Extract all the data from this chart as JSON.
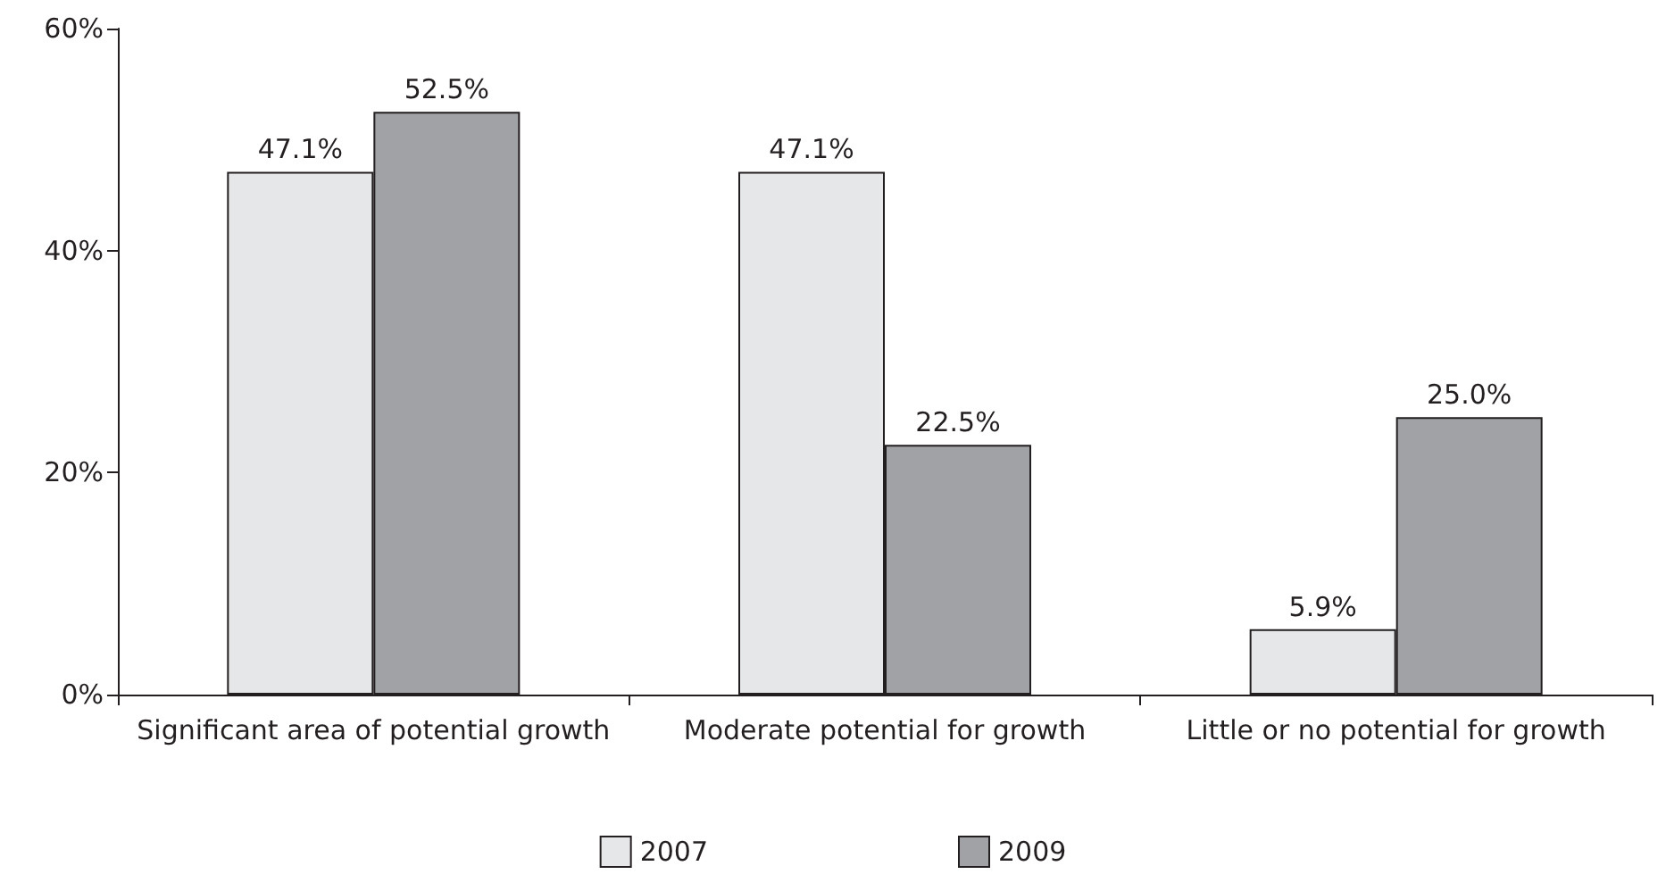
{
  "chart_data": {
    "type": "bar",
    "categories": [
      "Significant area of potential growth",
      "Moderate potential for growth",
      "Little or no potential for growth"
    ],
    "series": [
      {
        "name": "2007",
        "color": "#e6e7e8",
        "values": [
          47.1,
          47.1,
          5.9
        ],
        "value_labels": [
          "47.1%",
          "47.1%",
          "5.9%"
        ]
      },
      {
        "name": "2009",
        "color": "#a1a2a5",
        "values": [
          52.5,
          22.5,
          25.0
        ],
        "value_labels": [
          "52.5%",
          "22.5%",
          "25.0%"
        ]
      }
    ],
    "ylim": [
      0,
      60
    ],
    "yticks": [
      {
        "value": 0,
        "label": "0%"
      },
      {
        "value": 20,
        "label": "20%"
      },
      {
        "value": 40,
        "label": "40%"
      },
      {
        "value": 60,
        "label": "60%"
      }
    ],
    "grid": false,
    "legend": "bottom"
  }
}
